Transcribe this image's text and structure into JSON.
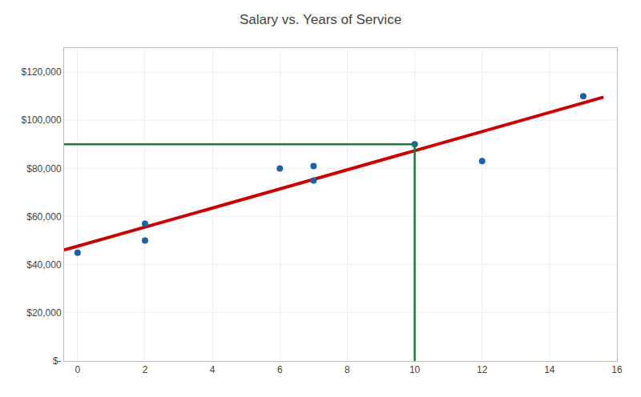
{
  "chart_data": {
    "type": "scatter",
    "title": "Salary vs. Years of Service",
    "series": [
      {
        "type": "scatter",
        "color": "#1f5fa6",
        "x": [
          0,
          2,
          2,
          6,
          7,
          7,
          10,
          12,
          15
        ],
        "values": [
          45000,
          57000,
          50000,
          80000,
          81000,
          75000,
          90000,
          83000,
          110000
        ]
      },
      {
        "type": "line",
        "color": "#cc0000",
        "x": [
          -0.4,
          15.6
        ],
        "values": [
          46066.48,
          109571.54
        ]
      },
      {
        "type": "line",
        "color": "#1a7a3a",
        "x": [
          -0.4,
          10
        ],
        "values": [
          90000,
          90000
        ]
      },
      {
        "type": "line",
        "color": "#1a7a3a",
        "x": [
          10,
          10
        ],
        "values": [
          0,
          90000
        ]
      }
    ],
    "xlim": [
      -0.4,
      16
    ],
    "ylim": [
      0,
      130000
    ],
    "xticks": [
      0,
      2,
      4,
      6,
      8,
      10,
      12,
      14,
      16
    ],
    "yticks": [
      {
        "value": 0,
        "label": "$-"
      },
      {
        "value": 20000,
        "label": "$20,000"
      },
      {
        "value": 40000,
        "label": "$40,000"
      },
      {
        "value": 60000,
        "label": "$60,000"
      },
      {
        "value": 80000,
        "label": "$80,000"
      },
      {
        "value": 100000,
        "label": "$100,000"
      },
      {
        "value": 120000,
        "label": "$120,000"
      }
    ],
    "grid": true
  }
}
